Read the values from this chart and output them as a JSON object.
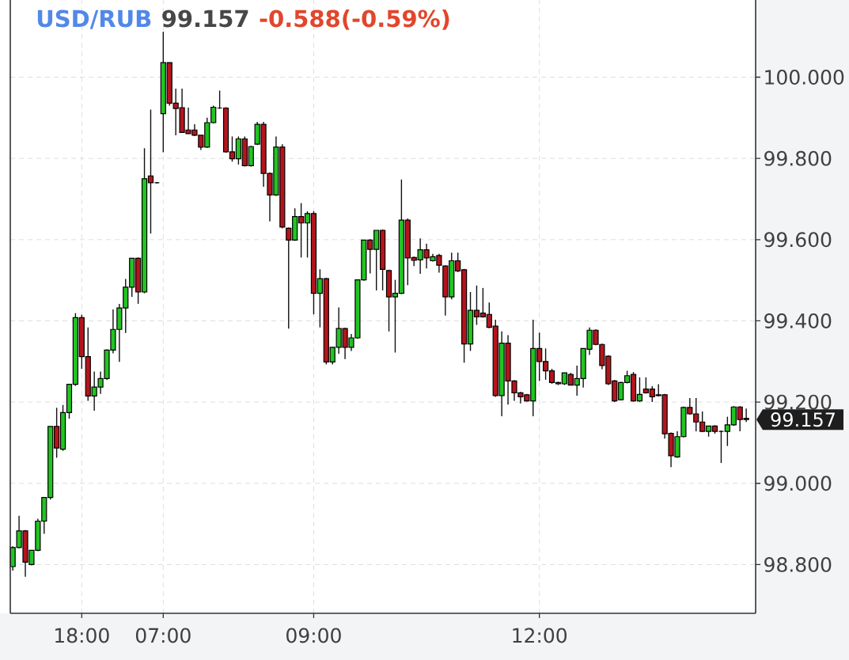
{
  "chart_data": {
    "type": "candlestick",
    "title": "USD/RUB",
    "subtitle": "99.157",
    "annotations": [
      "-0.588(-0.59%)",
      "99.157"
    ],
    "categories": [
      null,
      null,
      null,
      null,
      null,
      null,
      null,
      null,
      null,
      null,
      null,
      "18:00",
      null,
      null,
      null,
      null,
      null,
      null,
      null,
      null,
      null,
      null,
      null,
      null,
      "07:00",
      null,
      null,
      null,
      null,
      null,
      null,
      null,
      null,
      null,
      null,
      null,
      null,
      null,
      null,
      null,
      null,
      null,
      null,
      null,
      null,
      null,
      null,
      null,
      "09:00",
      null,
      null,
      null,
      null,
      null,
      null,
      null,
      null,
      null,
      null,
      null,
      null,
      null,
      null,
      null,
      null,
      null,
      null,
      null,
      null,
      null,
      null,
      null,
      null,
      null,
      null,
      null,
      null,
      null,
      null,
      null,
      null,
      null,
      null,
      null,
      "12:00",
      null,
      null,
      null,
      null,
      null,
      null,
      null,
      null,
      null,
      null,
      null,
      null,
      null,
      null,
      null,
      null,
      null,
      null,
      null,
      null,
      null,
      null,
      null,
      null,
      null,
      null,
      null,
      null,
      null,
      null,
      null,
      null,
      null
    ],
    "ohlc": [
      [
        98.795,
        98.845,
        98.785,
        98.842
      ],
      [
        98.842,
        98.92,
        98.84,
        98.883
      ],
      [
        98.883,
        98.885,
        98.77,
        98.806
      ],
      [
        98.8,
        98.835,
        98.798,
        98.835
      ],
      [
        98.835,
        98.913,
        98.833,
        98.907
      ],
      [
        98.907,
        98.965,
        98.876,
        98.965
      ],
      [
        98.965,
        99.14,
        98.96,
        99.14
      ],
      [
        99.14,
        99.186,
        99.063,
        99.087
      ],
      [
        99.084,
        99.193,
        99.08,
        99.174
      ],
      [
        99.174,
        99.244,
        99.159,
        99.244
      ],
      [
        99.244,
        99.419,
        99.24,
        99.408
      ],
      [
        99.408,
        99.415,
        99.282,
        99.312
      ],
      [
        99.312,
        99.384,
        99.203,
        99.215
      ],
      [
        99.215,
        99.275,
        99.179,
        99.237
      ],
      [
        99.237,
        99.275,
        99.22,
        99.258
      ],
      [
        99.258,
        99.33,
        99.255,
        99.328
      ],
      [
        99.328,
        99.428,
        99.32,
        99.379
      ],
      [
        99.379,
        99.442,
        99.299,
        99.432
      ],
      [
        99.432,
        99.503,
        99.37,
        99.483
      ],
      [
        99.483,
        99.554,
        99.459,
        99.554
      ],
      [
        99.554,
        99.556,
        99.442,
        99.471
      ],
      [
        99.471,
        99.825,
        99.468,
        99.75
      ],
      [
        99.757,
        99.92,
        99.615,
        99.74
      ],
      [
        99.74,
        99.742,
        99.738,
        99.74
      ],
      [
        99.91,
        100.112,
        99.815,
        100.036
      ],
      [
        100.036,
        100.036,
        99.93,
        99.936
      ],
      [
        99.936,
        99.972,
        99.857,
        99.923
      ],
      [
        99.925,
        99.972,
        99.864,
        99.864
      ],
      [
        99.87,
        99.925,
        99.86,
        99.861
      ],
      [
        99.87,
        99.884,
        99.855,
        99.857
      ],
      [
        99.857,
        99.857,
        99.821,
        99.828
      ],
      [
        99.828,
        99.9,
        99.826,
        99.888
      ],
      [
        99.888,
        99.93,
        99.886,
        99.926
      ],
      [
        99.924,
        99.967,
        99.922,
        99.924
      ],
      [
        99.924,
        99.926,
        99.814,
        99.816
      ],
      [
        99.816,
        99.854,
        99.792,
        99.799
      ],
      [
        99.799,
        99.854,
        99.785,
        99.848
      ],
      [
        99.848,
        99.854,
        99.78,
        99.782
      ],
      [
        99.782,
        99.831,
        99.78,
        99.829
      ],
      [
        99.835,
        99.89,
        99.833,
        99.884
      ],
      [
        99.884,
        99.89,
        99.73,
        99.763
      ],
      [
        99.763,
        99.765,
        99.645,
        99.71
      ],
      [
        99.71,
        99.854,
        99.708,
        99.828
      ],
      [
        99.828,
        99.835,
        99.628,
        99.631
      ],
      [
        99.628,
        99.63,
        99.381,
        99.599
      ],
      [
        99.599,
        99.677,
        99.597,
        99.657
      ],
      [
        99.657,
        99.69,
        99.556,
        99.641
      ],
      [
        99.641,
        99.67,
        99.556,
        99.664
      ],
      [
        99.664,
        99.67,
        99.416,
        99.468
      ],
      [
        99.468,
        99.527,
        99.384,
        99.504
      ],
      [
        99.504,
        99.506,
        99.293,
        99.299
      ],
      [
        99.299,
        99.335,
        99.293,
        99.335
      ],
      [
        99.335,
        99.433,
        99.319,
        99.381
      ],
      [
        99.381,
        99.383,
        99.306,
        99.335
      ],
      [
        99.335,
        99.368,
        99.326,
        99.358
      ],
      [
        99.358,
        99.501,
        99.356,
        99.501
      ],
      [
        99.501,
        99.599,
        99.499,
        99.599
      ],
      [
        99.599,
        99.601,
        99.517,
        99.576
      ],
      [
        99.576,
        99.623,
        99.475,
        99.623
      ],
      [
        99.623,
        99.625,
        99.475,
        99.527
      ],
      [
        99.524,
        99.526,
        99.374,
        99.459
      ],
      [
        99.459,
        99.501,
        99.322,
        99.468
      ],
      [
        99.468,
        99.748,
        99.466,
        99.648
      ],
      [
        99.648,
        99.652,
        99.488,
        99.555
      ],
      [
        99.556,
        99.558,
        99.535,
        99.549
      ],
      [
        99.55,
        99.603,
        99.516,
        99.575
      ],
      [
        99.575,
        99.59,
        99.529,
        99.555
      ],
      [
        99.548,
        99.565,
        99.546,
        99.558
      ],
      [
        99.561,
        99.565,
        99.519,
        99.537
      ],
      [
        99.535,
        99.537,
        99.413,
        99.459
      ],
      [
        99.459,
        99.568,
        99.453,
        99.548
      ],
      [
        99.548,
        99.568,
        99.52,
        99.523
      ],
      [
        99.526,
        99.528,
        99.297,
        99.343
      ],
      [
        99.343,
        99.471,
        99.326,
        99.426
      ],
      [
        99.426,
        99.487,
        99.39,
        99.41
      ],
      [
        99.419,
        99.481,
        99.408,
        99.41
      ],
      [
        99.416,
        99.445,
        99.382,
        99.384
      ],
      [
        99.387,
        99.403,
        99.213,
        99.216
      ],
      [
        99.216,
        99.374,
        99.165,
        99.345
      ],
      [
        99.345,
        99.365,
        99.194,
        99.252
      ],
      [
        99.252,
        99.254,
        99.203,
        99.223
      ],
      [
        99.223,
        99.225,
        99.197,
        99.213
      ],
      [
        99.218,
        99.22,
        99.201,
        99.203
      ],
      [
        99.203,
        99.403,
        99.165,
        99.332
      ],
      [
        99.332,
        99.371,
        99.252,
        99.3
      ],
      [
        99.3,
        99.332,
        99.255,
        99.277
      ],
      [
        99.277,
        99.282,
        99.245,
        99.248
      ],
      [
        99.248,
        99.25,
        99.242,
        99.245
      ],
      [
        99.245,
        99.272,
        99.242,
        99.272
      ],
      [
        99.268,
        99.272,
        99.242,
        99.242
      ],
      [
        99.242,
        99.29,
        99.216,
        99.258
      ],
      [
        99.258,
        99.332,
        99.236,
        99.332
      ],
      [
        99.33,
        99.384,
        99.316,
        99.377
      ],
      [
        99.377,
        99.379,
        99.34,
        99.342
      ],
      [
        99.342,
        99.344,
        99.281,
        99.29
      ],
      [
        99.313,
        99.315,
        99.242,
        99.245
      ],
      [
        99.252,
        99.255,
        99.2,
        99.203
      ],
      [
        99.206,
        99.25,
        99.204,
        99.248
      ],
      [
        99.248,
        99.277,
        99.246,
        99.265
      ],
      [
        99.268,
        99.274,
        99.201,
        99.203
      ],
      [
        99.203,
        99.261,
        99.201,
        99.219
      ],
      [
        99.232,
        99.261,
        99.221,
        99.223
      ],
      [
        99.232,
        99.239,
        99.2,
        99.213
      ],
      [
        99.218,
        99.244,
        99.214,
        99.216
      ],
      [
        99.218,
        99.22,
        99.11,
        99.122
      ],
      [
        99.123,
        99.125,
        99.04,
        99.068
      ],
      [
        99.065,
        99.128,
        99.063,
        99.115
      ],
      [
        99.115,
        99.189,
        99.113,
        99.187
      ],
      [
        99.187,
        99.21,
        99.169,
        99.171
      ],
      [
        99.171,
        99.21,
        99.128,
        99.151
      ],
      [
        99.151,
        99.177,
        99.126,
        99.128
      ],
      [
        99.128,
        99.141,
        99.115,
        99.141
      ],
      [
        99.141,
        99.143,
        99.122,
        99.128
      ],
      [
        99.128,
        99.13,
        99.05,
        99.128
      ],
      [
        99.128,
        99.164,
        99.092,
        99.144
      ],
      [
        99.144,
        99.19,
        99.142,
        99.188
      ],
      [
        99.188,
        99.19,
        99.128,
        99.157
      ],
      [
        99.16,
        99.184,
        99.151,
        99.157
      ]
    ],
    "ylim": [
      98.68,
      100.19
    ],
    "yticks": [
      {
        "value": 98.8,
        "label": "98.800"
      },
      {
        "value": 99.0,
        "label": "99.000"
      },
      {
        "value": 99.2,
        "label": "99.200"
      },
      {
        "value": 99.4,
        "label": "99.400"
      },
      {
        "value": 99.6,
        "label": "99.600"
      },
      {
        "value": 99.8,
        "label": "99.800"
      },
      {
        "value": 100.0,
        "label": "100.000"
      }
    ],
    "grid": true
  }
}
